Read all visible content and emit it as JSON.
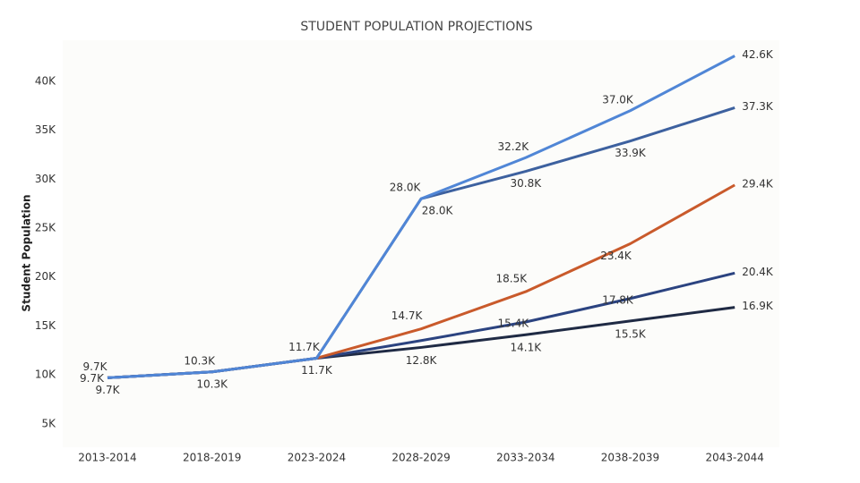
{
  "chart_data": {
    "type": "line",
    "title": "STUDENT POPULATION PROJECTIONS",
    "y_label": "Student Population",
    "categories": [
      "2013-2014",
      "2018-2019",
      "2023-2024",
      "2028-2029",
      "2033-2034",
      "2038-2039",
      "2043-2044"
    ],
    "ylim": [
      2600,
      44200
    ],
    "yticks": [
      {
        "value": 5000,
        "label": "5K"
      },
      {
        "value": 10000,
        "label": "10K"
      },
      {
        "value": 15000,
        "label": "15K"
      },
      {
        "value": 20000,
        "label": "20K"
      },
      {
        "value": 25000,
        "label": "25K"
      },
      {
        "value": 30000,
        "label": "30K"
      },
      {
        "value": 35000,
        "label": "35K"
      },
      {
        "value": 40000,
        "label": "40K"
      }
    ],
    "series": [
      {
        "color": "#1f2a44",
        "values": [
          9700,
          10300,
          11700,
          12800,
          14100,
          15500,
          16900
        ],
        "value_labels": [
          "9.7K",
          null,
          null,
          "12.8K",
          "14.1K",
          "15.5K",
          "16.9K"
        ]
      },
      {
        "color": "#2b4380",
        "values": [
          9700,
          10300,
          11700,
          13500,
          15400,
          17800,
          20400
        ],
        "value_labels": [
          null,
          null,
          null,
          null,
          "15.4K",
          "17.8K",
          "20.4K"
        ]
      },
      {
        "color": "#c95a2b",
        "values": [
          9700,
          10300,
          11700,
          14700,
          18500,
          23400,
          29400
        ],
        "value_labels": [
          null,
          null,
          null,
          "14.7K",
          "18.5K",
          "23.4K",
          "29.4K"
        ]
      },
      {
        "color": "#3d619f",
        "values": [
          9700,
          10300,
          11700,
          28000,
          30800,
          33900,
          37300
        ],
        "value_labels": [
          "9.7K",
          "10.3K",
          "11.7K",
          "28.0K",
          "30.8K",
          "33.9K",
          "37.3K"
        ]
      },
      {
        "color": "#5086d6",
        "values": [
          9700,
          10300,
          11700,
          28000,
          32200,
          37000,
          42600
        ],
        "value_labels": [
          "9.7K",
          "10.3K",
          "11.7K",
          "28.0K",
          "32.2K",
          "37.0K",
          "42.6K"
        ]
      }
    ]
  }
}
